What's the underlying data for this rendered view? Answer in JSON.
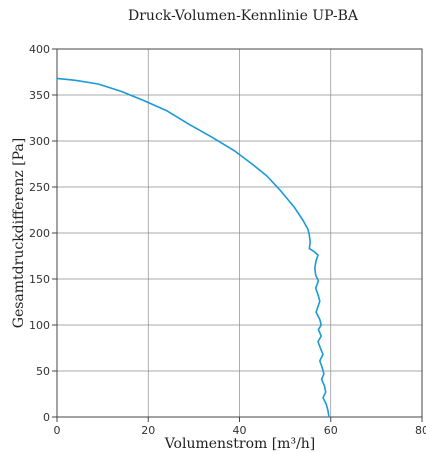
{
  "chart_data": {
    "type": "line",
    "title": "Druck-Volumen-Kennlinie UP-BA",
    "xlabel": "Volumenstrom [m³/h]",
    "ylabel": "Gesamtdruckdifferenz [Pa]",
    "xlim": [
      0,
      80
    ],
    "ylim": [
      0,
      400
    ],
    "x_ticks": [
      0,
      20,
      40,
      60,
      80
    ],
    "y_ticks": [
      0,
      50,
      100,
      150,
      200,
      250,
      300,
      350,
      400
    ],
    "grid": true,
    "line_color": "#1a9ad6",
    "series": [
      {
        "values": [
          [
            0,
            368
          ],
          [
            4,
            366
          ],
          [
            9,
            362
          ],
          [
            14,
            354
          ],
          [
            19,
            344
          ],
          [
            24,
            333
          ],
          [
            29,
            318
          ],
          [
            34,
            304
          ],
          [
            39,
            289
          ],
          [
            43,
            274
          ],
          [
            46,
            262
          ],
          [
            49,
            246
          ],
          [
            52,
            228
          ],
          [
            54,
            213
          ],
          [
            55,
            204
          ],
          [
            55.3,
            198
          ],
          [
            55.5,
            190
          ],
          [
            55.3,
            183
          ],
          [
            56.3,
            180
          ],
          [
            57.2,
            176
          ],
          [
            56.8,
            170
          ],
          [
            56.5,
            162
          ],
          [
            56.7,
            154
          ],
          [
            57.3,
            148
          ],
          [
            56.7,
            140
          ],
          [
            57.2,
            133
          ],
          [
            57.6,
            126
          ],
          [
            57.2,
            120
          ],
          [
            56.8,
            114
          ],
          [
            57.6,
            106
          ],
          [
            57.9,
            100
          ],
          [
            57.3,
            95
          ],
          [
            57.9,
            88
          ],
          [
            57.2,
            82
          ],
          [
            57.8,
            74
          ],
          [
            58.3,
            68
          ],
          [
            57.6,
            61
          ],
          [
            58.1,
            54
          ],
          [
            58.5,
            47
          ],
          [
            58.0,
            41
          ],
          [
            58.6,
            34
          ],
          [
            58.9,
            27
          ],
          [
            58.3,
            21
          ],
          [
            59.0,
            14
          ],
          [
            59.4,
            7
          ],
          [
            59.6,
            0
          ]
        ]
      }
    ]
  }
}
